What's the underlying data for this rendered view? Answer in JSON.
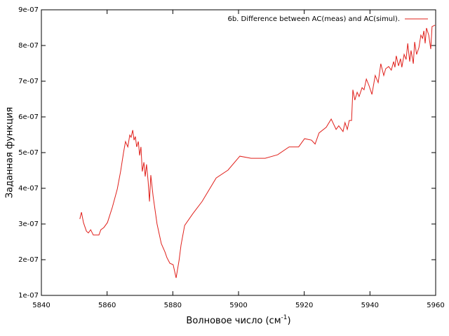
{
  "chart_data": {
    "type": "line",
    "xlabel": "Волновое число (см",
    "xlabel_sup": "-1",
    "xlabel_end": ")",
    "ylabel": "Заданная функция",
    "xlim": [
      5840,
      5960
    ],
    "xticks": [
      5840,
      5860,
      5880,
      5900,
      5920,
      5940,
      5960
    ],
    "ylim": [
      1e-07,
      9e-07
    ],
    "yticks": [
      {
        "value": 1e-07,
        "label": "1e-07"
      },
      {
        "value": 2e-07,
        "label": "2e-07"
      },
      {
        "value": 3e-07,
        "label": "3e-07"
      },
      {
        "value": 4e-07,
        "label": "4e-07"
      },
      {
        "value": 5e-07,
        "label": "5e-07"
      },
      {
        "value": 6e-07,
        "label": "6e-07"
      },
      {
        "value": 7e-07,
        "label": "7e-07"
      },
      {
        "value": 8e-07,
        "label": "8e-07"
      },
      {
        "value": 9e-07,
        "label": "9e-07"
      }
    ],
    "grid": false,
    "legend": "top-right",
    "x": [
      5851.7,
      5852.2,
      5852.8,
      5853.7,
      5854.3,
      5855.0,
      5855.8,
      5857.5,
      5858.1,
      5859.0,
      5860.1,
      5861.6,
      5863.1,
      5864.1,
      5865.0,
      5865.6,
      5866.3,
      5866.9,
      5867.3,
      5867.8,
      5868.2,
      5868.6,
      5869.0,
      5869.5,
      5869.9,
      5870.3,
      5870.7,
      5871.2,
      5871.6,
      5872.0,
      5872.5,
      5872.9,
      5873.3,
      5874.0,
      5875.2,
      5876.5,
      5877.6,
      5878.2,
      5879.1,
      5880.1,
      5881.0,
      5881.9,
      5882.5,
      5883.6,
      5886.1,
      5888.9,
      5893.2,
      5896.8,
      5900.4,
      5903.8,
      5908.1,
      5911.9,
      5915.4,
      5918.3,
      5920.1,
      5922.2,
      5923.3,
      5924.5,
      5926.7,
      5928.2,
      5929.7,
      5930.5,
      5931.8,
      5932.4,
      5933.1,
      5933.7,
      5934.4,
      5934.8,
      5935.4,
      5936.1,
      5936.7,
      5937.6,
      5938.2,
      5938.9,
      5939.7,
      5940.6,
      5941.6,
      5942.5,
      5943.3,
      5944.2,
      5944.8,
      5945.7,
      5946.5,
      5947.2,
      5947.6,
      5948.0,
      5948.7,
      5949.3,
      5949.7,
      5950.4,
      5951.0,
      5951.5,
      5952.1,
      5952.5,
      5953.2,
      5953.6,
      5954.2,
      5954.9,
      5955.5,
      5956.0,
      5956.4,
      5956.8,
      5957.2,
      5957.9,
      5958.5,
      5958.9,
      5959.8
    ],
    "series": [
      {
        "name": "6b. Difference between AC(meas) and AC(simul).",
        "color": "#e0201b",
        "values": [
          3.14e-07,
          3.33e-07,
          3.04e-07,
          2.8e-07,
          2.75e-07,
          2.84e-07,
          2.69e-07,
          2.69e-07,
          2.84e-07,
          2.9e-07,
          3.04e-07,
          3.47e-07,
          3.98e-07,
          4.47e-07,
          5e-07,
          5.31e-07,
          5.16e-07,
          5.49e-07,
          5.43e-07,
          5.63e-07,
          5.35e-07,
          5.45e-07,
          5.16e-07,
          5.31e-07,
          4.92e-07,
          5.16e-07,
          4.47e-07,
          4.73e-07,
          4.33e-07,
          4.67e-07,
          4.18e-07,
          3.63e-07,
          4.37e-07,
          3.78e-07,
          3e-07,
          2.45e-07,
          2.22e-07,
          2.06e-07,
          1.9e-07,
          1.86e-07,
          1.49e-07,
          1.98e-07,
          2.41e-07,
          2.96e-07,
          3.29e-07,
          3.63e-07,
          4.29e-07,
          4.51e-07,
          4.9e-07,
          4.84e-07,
          4.84e-07,
          4.94e-07,
          5.16e-07,
          5.16e-07,
          5.39e-07,
          5.35e-07,
          5.24e-07,
          5.55e-07,
          5.71e-07,
          5.94e-07,
          5.65e-07,
          5.75e-07,
          5.59e-07,
          5.84e-07,
          5.65e-07,
          5.9e-07,
          5.9e-07,
          6.76e-07,
          6.47e-07,
          6.69e-07,
          6.57e-07,
          6.82e-07,
          6.76e-07,
          7.06e-07,
          6.88e-07,
          6.63e-07,
          7.16e-07,
          6.96e-07,
          7.49e-07,
          7.16e-07,
          7.35e-07,
          7.41e-07,
          7.31e-07,
          7.55e-07,
          7.39e-07,
          7.71e-07,
          7.43e-07,
          7.63e-07,
          7.39e-07,
          7.75e-07,
          7.61e-07,
          8.06e-07,
          7.55e-07,
          7.86e-07,
          7.49e-07,
          8.1e-07,
          7.75e-07,
          7.94e-07,
          8.29e-07,
          8.2e-07,
          8.41e-07,
          8.06e-07,
          8.49e-07,
          8.29e-07,
          7.9e-07,
          8.53e-07,
          8.57e-07
        ]
      }
    ]
  }
}
